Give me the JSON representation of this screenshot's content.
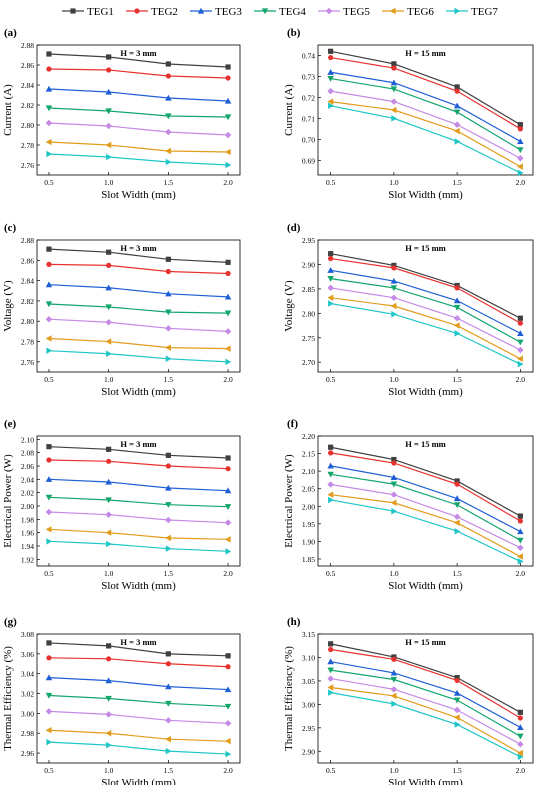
{
  "legend": {
    "position": "top",
    "items": [
      {
        "name": "TEG1",
        "color": "#404040",
        "marker": "square"
      },
      {
        "name": "TEG2",
        "color": "#e8322f",
        "marker": "circle"
      },
      {
        "name": "TEG3",
        "color": "#1f5fd6",
        "marker": "triangle-up"
      },
      {
        "name": "TEG4",
        "color": "#12a66b",
        "marker": "triangle-down"
      },
      {
        "name": "TEG5",
        "color": "#c58ae6",
        "marker": "diamond"
      },
      {
        "name": "TEG6",
        "color": "#e39b1c",
        "marker": "triangle-left"
      },
      {
        "name": "TEG7",
        "color": "#20c6c6",
        "marker": "triangle-right"
      }
    ]
  },
  "chart_data": [
    {
      "panel": "(a)",
      "type": "line",
      "title": "H = 3 mm",
      "xlabel": "Slot Width (mm)",
      "ylabel": "Current (A)",
      "x": [
        0.5,
        1.0,
        1.5,
        2.0
      ],
      "xticks": [
        "0.5",
        "1.0",
        "1.5",
        "2.0"
      ],
      "xlim": [
        0.4,
        2.1
      ],
      "ylim": [
        2.75,
        2.88
      ],
      "yticks": [
        2.76,
        2.78,
        2.8,
        2.82,
        2.84,
        2.86,
        2.88
      ],
      "ytick_labels": [
        "2.76",
        "2.78",
        "2.80",
        "2.82",
        "2.84",
        "2.86",
        "2.88"
      ],
      "series": [
        {
          "name": "TEG1",
          "values": [
            2.871,
            2.868,
            2.861,
            2.858
          ]
        },
        {
          "name": "TEG2",
          "values": [
            2.856,
            2.855,
            2.849,
            2.847
          ]
        },
        {
          "name": "TEG3",
          "values": [
            2.836,
            2.833,
            2.827,
            2.824
          ]
        },
        {
          "name": "TEG4",
          "values": [
            2.817,
            2.814,
            2.809,
            2.808
          ]
        },
        {
          "name": "TEG5",
          "values": [
            2.802,
            2.799,
            2.793,
            2.79
          ]
        },
        {
          "name": "TEG6",
          "values": [
            2.783,
            2.78,
            2.774,
            2.773
          ]
        },
        {
          "name": "TEG7",
          "values": [
            2.771,
            2.768,
            2.763,
            2.76
          ]
        }
      ]
    },
    {
      "panel": "(b)",
      "type": "line",
      "title": "H = 15 mm",
      "xlabel": "Slot Width (mm)",
      "ylabel": "Current (A)",
      "x": [
        0.5,
        1.0,
        1.5,
        2.0
      ],
      "xticks": [
        "0.5",
        "1.0",
        "1.5",
        "2.0"
      ],
      "xlim": [
        0.4,
        2.1
      ],
      "ylim": [
        0.683,
        0.745
      ],
      "yticks": [
        0.69,
        0.7,
        0.71,
        0.72,
        0.73,
        0.74
      ],
      "ytick_labels": [
        "0.69",
        "0.70",
        "0.71",
        "0.72",
        "0.73",
        "0.74"
      ],
      "series": [
        {
          "name": "TEG1",
          "values": [
            0.742,
            0.736,
            0.725,
            0.707
          ]
        },
        {
          "name": "TEG2",
          "values": [
            0.739,
            0.734,
            0.723,
            0.705
          ]
        },
        {
          "name": "TEG3",
          "values": [
            0.732,
            0.727,
            0.716,
            0.699
          ]
        },
        {
          "name": "TEG4",
          "values": [
            0.729,
            0.724,
            0.713,
            0.695
          ]
        },
        {
          "name": "TEG5",
          "values": [
            0.723,
            0.718,
            0.707,
            0.691
          ]
        },
        {
          "name": "TEG6",
          "values": [
            0.718,
            0.714,
            0.704,
            0.687
          ]
        },
        {
          "name": "TEG7",
          "values": [
            0.716,
            0.71,
            0.699,
            0.684
          ]
        }
      ]
    },
    {
      "panel": "(c)",
      "type": "line",
      "title": "H = 3 mm",
      "xlabel": "Slot Width (mm)",
      "ylabel": "Voltage (V)",
      "x": [
        0.5,
        1.0,
        1.5,
        2.0
      ],
      "xticks": [
        "0.5",
        "1.0",
        "1.5",
        "2.0"
      ],
      "xlim": [
        0.4,
        2.1
      ],
      "ylim": [
        2.75,
        2.88
      ],
      "yticks": [
        2.76,
        2.78,
        2.8,
        2.82,
        2.84,
        2.86,
        2.88
      ],
      "ytick_labels": [
        "2.76",
        "2.78",
        "2.80",
        "2.82",
        "2.84",
        "2.86",
        "2.88"
      ],
      "series": [
        {
          "name": "TEG1",
          "values": [
            2.871,
            2.868,
            2.861,
            2.858
          ]
        },
        {
          "name": "TEG2",
          "values": [
            2.856,
            2.855,
            2.849,
            2.847
          ]
        },
        {
          "name": "TEG3",
          "values": [
            2.836,
            2.833,
            2.827,
            2.824
          ]
        },
        {
          "name": "TEG4",
          "values": [
            2.817,
            2.814,
            2.809,
            2.808
          ]
        },
        {
          "name": "TEG5",
          "values": [
            2.802,
            2.799,
            2.793,
            2.79
          ]
        },
        {
          "name": "TEG6",
          "values": [
            2.783,
            2.78,
            2.774,
            2.773
          ]
        },
        {
          "name": "TEG7",
          "values": [
            2.771,
            2.768,
            2.763,
            2.76
          ]
        }
      ]
    },
    {
      "panel": "(d)",
      "type": "line",
      "title": "H = 15 mm",
      "xlabel": "Slot Width (mm)",
      "ylabel": "Voltage (V)",
      "x": [
        0.5,
        1.0,
        1.5,
        2.0
      ],
      "xticks": [
        "0.5",
        "1.0",
        "1.5",
        "2.0"
      ],
      "xlim": [
        0.4,
        2.1
      ],
      "ylim": [
        2.68,
        2.95
      ],
      "yticks": [
        2.7,
        2.75,
        2.8,
        2.85,
        2.9,
        2.95
      ],
      "ytick_labels": [
        "2.70",
        "2.75",
        "2.80",
        "2.85",
        "2.90",
        "2.95"
      ],
      "series": [
        {
          "name": "TEG1",
          "values": [
            2.922,
            2.898,
            2.857,
            2.79
          ]
        },
        {
          "name": "TEG2",
          "values": [
            2.912,
            2.893,
            2.852,
            2.78
          ]
        },
        {
          "name": "TEG3",
          "values": [
            2.888,
            2.866,
            2.826,
            2.759
          ]
        },
        {
          "name": "TEG4",
          "values": [
            2.871,
            2.852,
            2.812,
            2.741
          ]
        },
        {
          "name": "TEG5",
          "values": [
            2.852,
            2.832,
            2.79,
            2.725
          ]
        },
        {
          "name": "TEG6",
          "values": [
            2.832,
            2.815,
            2.775,
            2.707
          ]
        },
        {
          "name": "TEG7",
          "values": [
            2.82,
            2.798,
            2.759,
            2.696
          ]
        }
      ]
    },
    {
      "panel": "(e)",
      "type": "line",
      "title": "H = 3 mm",
      "xlabel": "Slot Width (mm)",
      "ylabel": "Electrical Power (W)",
      "x": [
        0.5,
        1.0,
        1.5,
        2.0
      ],
      "xticks": [
        "0.5",
        "1.0",
        "1.5",
        "2.0"
      ],
      "xlim": [
        0.4,
        2.1
      ],
      "ylim": [
        1.91,
        2.105
      ],
      "yticks": [
        1.92,
        1.94,
        1.96,
        1.98,
        2.0,
        2.02,
        2.04,
        2.06,
        2.08,
        2.1
      ],
      "ytick_labels": [
        "1.92",
        "1.94",
        "1.96",
        "1.98",
        "2.00",
        "2.02",
        "2.04",
        "2.06",
        "2.08",
        "2.10"
      ],
      "series": [
        {
          "name": "TEG1",
          "values": [
            2.089,
            2.085,
            2.076,
            2.072
          ]
        },
        {
          "name": "TEG2",
          "values": [
            2.069,
            2.067,
            2.06,
            2.056
          ]
        },
        {
          "name": "TEG3",
          "values": [
            2.04,
            2.036,
            2.027,
            2.023
          ]
        },
        {
          "name": "TEG4",
          "values": [
            2.013,
            2.009,
            2.002,
            1.999
          ]
        },
        {
          "name": "TEG5",
          "values": [
            1.991,
            1.987,
            1.979,
            1.975
          ]
        },
        {
          "name": "TEG6",
          "values": [
            1.965,
            1.96,
            1.952,
            1.95
          ]
        },
        {
          "name": "TEG7",
          "values": [
            1.947,
            1.943,
            1.936,
            1.932
          ]
        }
      ]
    },
    {
      "panel": "(f)",
      "type": "line",
      "title": "H = 15 mm",
      "xlabel": "Slot Width (mm)",
      "ylabel": "Electrical Power (W)",
      "x": [
        0.5,
        1.0,
        1.5,
        2.0
      ],
      "xticks": [
        "0.5",
        "1.0",
        "1.5",
        "2.0"
      ],
      "xlim": [
        0.4,
        2.1
      ],
      "ylim": [
        1.83,
        2.2
      ],
      "yticks": [
        1.85,
        1.9,
        1.95,
        2.0,
        2.05,
        2.1,
        2.15,
        2.2
      ],
      "ytick_labels": [
        "1.85",
        "1.90",
        "1.95",
        "2.00",
        "2.05",
        "2.10",
        "2.15",
        "2.20"
      ],
      "series": [
        {
          "name": "TEG1",
          "values": [
            2.168,
            2.133,
            2.072,
            1.972
          ]
        },
        {
          "name": "TEG2",
          "values": [
            2.152,
            2.123,
            2.063,
            1.958
          ]
        },
        {
          "name": "TEG3",
          "values": [
            2.115,
            2.082,
            2.022,
            1.928
          ]
        },
        {
          "name": "TEG4",
          "values": [
            2.091,
            2.063,
            2.004,
            1.903
          ]
        },
        {
          "name": "TEG5",
          "values": [
            2.062,
            2.033,
            1.97,
            1.882
          ]
        },
        {
          "name": "TEG6",
          "values": [
            2.033,
            2.01,
            1.953,
            1.857
          ]
        },
        {
          "name": "TEG7",
          "values": [
            2.018,
            1.986,
            1.929,
            1.843
          ]
        }
      ]
    },
    {
      "panel": "(g)",
      "type": "line",
      "title": "H = 3 mm",
      "xlabel": "Slot Width (mm)",
      "ylabel": "Thermal Efficiency (%)",
      "x": [
        0.5,
        1.0,
        1.5,
        2.0
      ],
      "xticks": [
        "0.5",
        "1.0",
        "1.5",
        "2.0"
      ],
      "xlim": [
        0.4,
        2.1
      ],
      "ylim": [
        2.95,
        3.08
      ],
      "yticks": [
        2.96,
        2.98,
        3.0,
        3.02,
        3.04,
        3.06,
        3.08
      ],
      "ytick_labels": [
        "2.96",
        "2.98",
        "3.00",
        "3.02",
        "3.04",
        "3.06",
        "3.08"
      ],
      "series": [
        {
          "name": "TEG1",
          "values": [
            3.071,
            3.068,
            3.06,
            3.058
          ]
        },
        {
          "name": "TEG2",
          "values": [
            3.056,
            3.055,
            3.05,
            3.047
          ]
        },
        {
          "name": "TEG3",
          "values": [
            3.036,
            3.033,
            3.027,
            3.024
          ]
        },
        {
          "name": "TEG4",
          "values": [
            3.018,
            3.015,
            3.01,
            3.007
          ]
        },
        {
          "name": "TEG5",
          "values": [
            3.002,
            2.999,
            2.993,
            2.99
          ]
        },
        {
          "name": "TEG6",
          "values": [
            2.983,
            2.98,
            2.974,
            2.972
          ]
        },
        {
          "name": "TEG7",
          "values": [
            2.971,
            2.968,
            2.962,
            2.959
          ]
        }
      ]
    },
    {
      "panel": "(h)",
      "type": "line",
      "title": "H = 15 mm",
      "xlabel": "Slot Width (mm)",
      "ylabel": "Thermal Efficiency (%)",
      "x": [
        0.5,
        1.0,
        1.5,
        2.0
      ],
      "xticks": [
        "0.5",
        "1.0",
        "1.5",
        "2.0"
      ],
      "xlim": [
        0.4,
        2.1
      ],
      "ylim": [
        2.875,
        3.15
      ],
      "yticks": [
        2.9,
        2.95,
        3.0,
        3.05,
        3.1,
        3.15
      ],
      "ytick_labels": [
        "2.90",
        "2.95",
        "3.00",
        "3.05",
        "3.10",
        "3.15"
      ],
      "series": [
        {
          "name": "TEG1",
          "values": [
            3.129,
            3.101,
            3.057,
            2.983
          ]
        },
        {
          "name": "TEG2",
          "values": [
            3.117,
            3.096,
            3.051,
            2.971
          ]
        },
        {
          "name": "TEG3",
          "values": [
            3.091,
            3.067,
            3.024,
            2.951
          ]
        },
        {
          "name": "TEG4",
          "values": [
            3.073,
            3.053,
            3.009,
            2.932
          ]
        },
        {
          "name": "TEG5",
          "values": [
            3.055,
            3.032,
            2.988,
            2.915
          ]
        },
        {
          "name": "TEG6",
          "values": [
            3.036,
            3.018,
            2.972,
            2.896
          ]
        },
        {
          "name": "TEG7",
          "values": [
            3.025,
            3.001,
            2.957,
            2.888
          ]
        }
      ]
    }
  ]
}
